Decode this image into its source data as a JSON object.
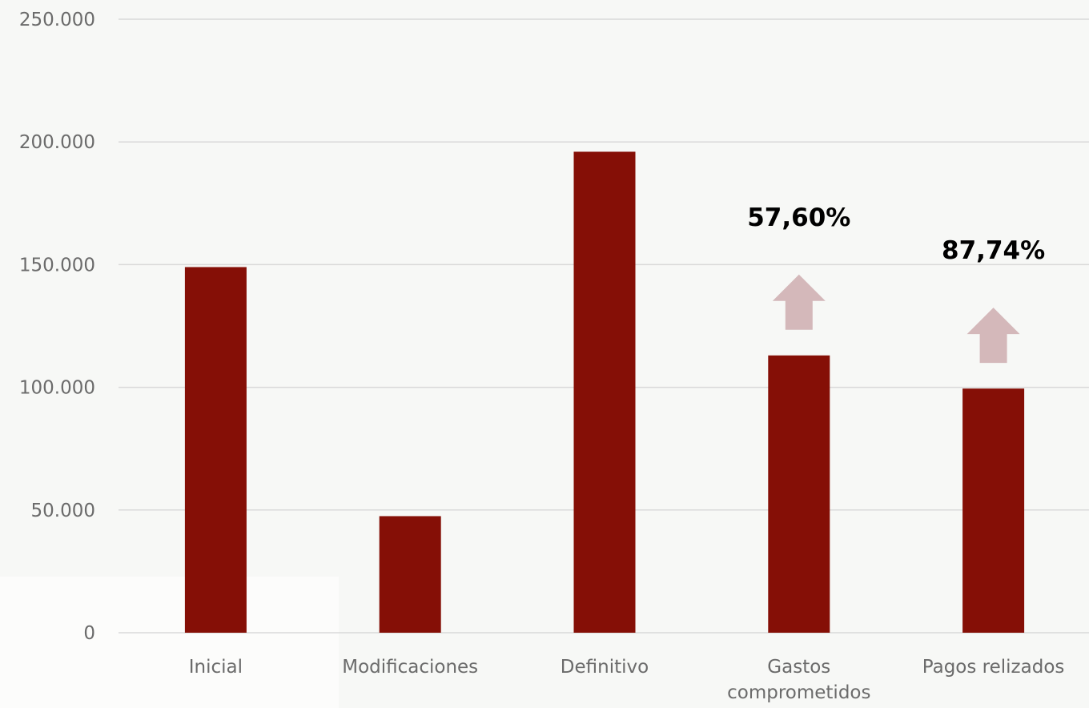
{
  "chart_data": {
    "type": "bar",
    "categories": [
      "Inicial",
      "Modificaciones",
      "Definitivo",
      "Gastos comprometidos",
      "Pagos relizados"
    ],
    "values": [
      149000,
      47500,
      196000,
      113000,
      99500
    ],
    "ylim": [
      0,
      250000
    ],
    "yticks": [
      0,
      50000,
      100000,
      150000,
      200000,
      250000
    ],
    "ytick_labels": [
      "0",
      "50.000",
      "100.000",
      "150.000",
      "200.000",
      "250.000"
    ],
    "annotations": [
      {
        "category": "Gastos comprometidos",
        "text": "57,60%",
        "arrow": "up"
      },
      {
        "category": "Pagos relizados",
        "text": "87,74%",
        "arrow": "up"
      }
    ],
    "grid": true,
    "legend": "none"
  },
  "colors": {
    "bar": "#850f06",
    "arrow": "#d4b8ba",
    "grid": "#d9d9d9",
    "label": "#6b6b6b"
  }
}
